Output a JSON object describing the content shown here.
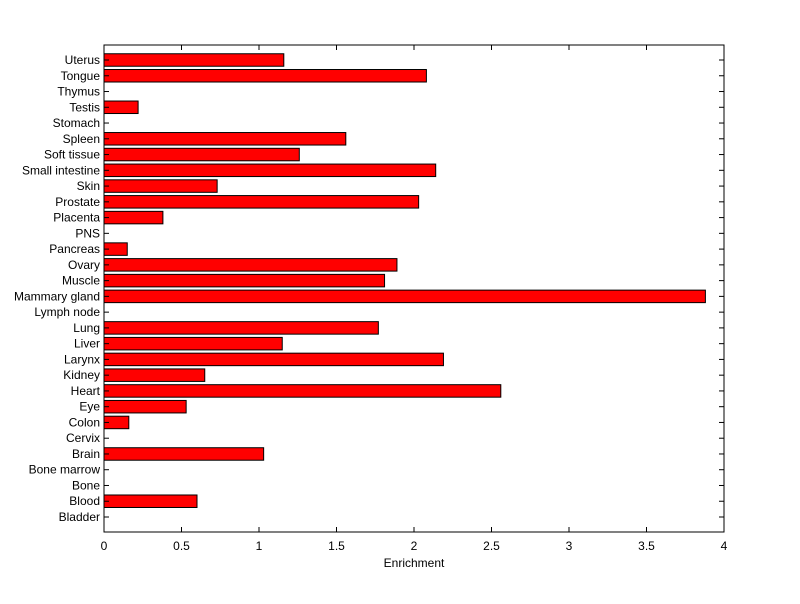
{
  "chart_data": {
    "type": "bar",
    "orientation": "horizontal",
    "title": "",
    "xlabel": "Enrichment",
    "ylabel": "",
    "xlim": [
      0,
      4
    ],
    "xticks": [
      "0",
      "0.5",
      "1",
      "1.5",
      "2",
      "2.5",
      "3",
      "3.5",
      "4"
    ],
    "grid": false,
    "legend": "none",
    "bar_color": "#ff0000",
    "bar_edge_color": "#000000",
    "categories": [
      "Bladder",
      "Blood",
      "Bone",
      "Bone marrow",
      "Brain",
      "Cervix",
      "Colon",
      "Eye",
      "Heart",
      "Kidney",
      "Larynx",
      "Liver",
      "Lung",
      "Lymph node",
      "Mammary gland",
      "Muscle",
      "Ovary",
      "Pancreas",
      "PNS",
      "Placenta",
      "Prostate",
      "Skin",
      "Small intestine",
      "Soft tissue",
      "Spleen",
      "Stomach",
      "Testis",
      "Thymus",
      "Tongue",
      "Uterus"
    ],
    "values": [
      0,
      0.6,
      0,
      0,
      1.03,
      0,
      0.16,
      0.53,
      2.56,
      0.65,
      2.19,
      1.15,
      1.77,
      0,
      3.88,
      1.81,
      1.89,
      0.15,
      0,
      0.38,
      2.03,
      0.73,
      2.14,
      1.26,
      1.56,
      0,
      0.22,
      0,
      2.08,
      1.16
    ]
  }
}
